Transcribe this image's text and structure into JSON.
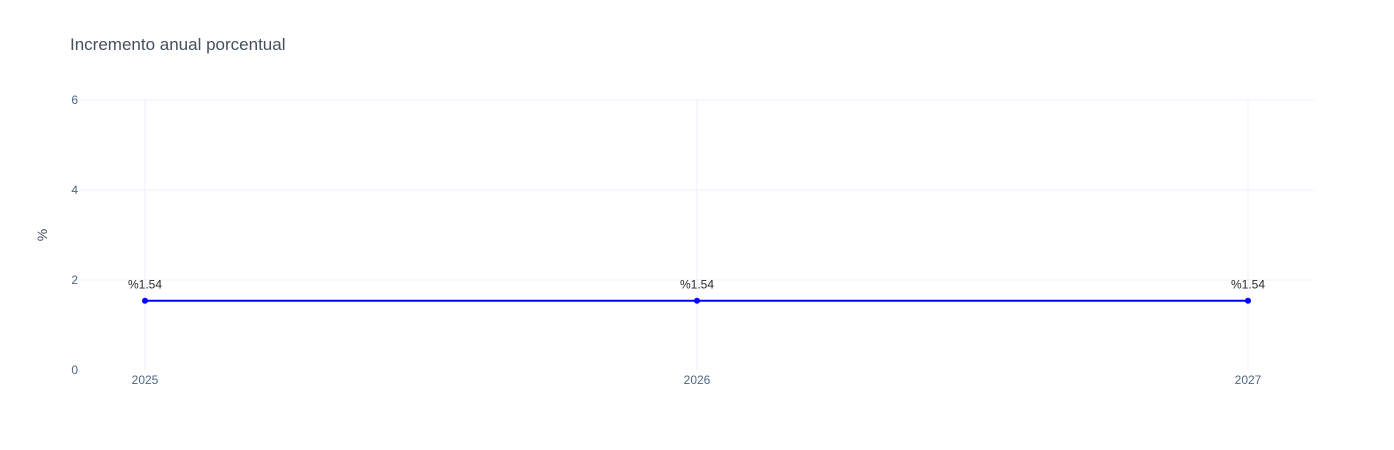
{
  "chart_data": {
    "type": "line",
    "title": "Incremento anual porcentual",
    "xlabel": "",
    "ylabel": "%",
    "categories": [
      "2025",
      "2026",
      "2027"
    ],
    "series": [
      {
        "values": [
          1.54,
          1.54,
          1.54
        ],
        "labels": [
          "%1.54",
          "%1.54",
          "%1.54"
        ],
        "color": "#0000ff"
      }
    ],
    "yticks": [
      "0",
      "2",
      "4",
      "6"
    ],
    "ylim": [
      0,
      6
    ],
    "grid": true,
    "markers": true
  }
}
